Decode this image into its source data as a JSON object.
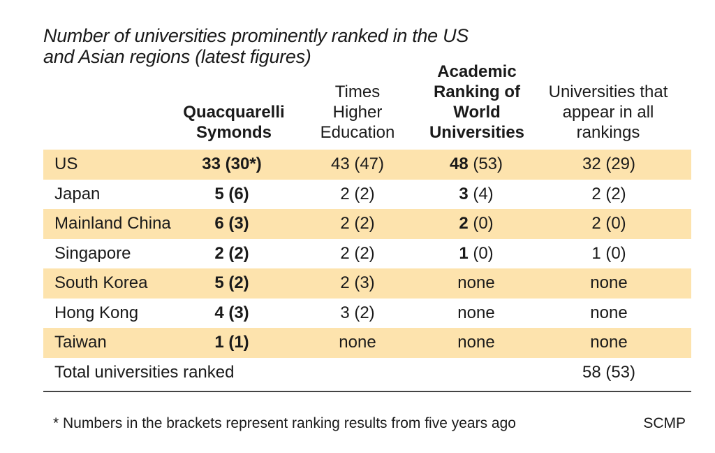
{
  "title": {
    "line1": "Number of universities prominently ranked in the US",
    "line2": "and Asian regions (latest figures)"
  },
  "headers": [
    {
      "lines": [
        "Quacquarelli",
        "Symonds"
      ],
      "bold": true
    },
    {
      "lines": [
        "Times",
        "Higher",
        "Education"
      ],
      "bold": false
    },
    {
      "lines": [
        "Academic",
        "Ranking of",
        "World",
        "Universities"
      ],
      "bold": true
    },
    {
      "lines": [
        "Universities that",
        "appear in all",
        "rankings"
      ],
      "bold": false
    }
  ],
  "chart_data": {
    "type": "table",
    "columns": [
      "Quacquarelli Symonds",
      "Times Higher Education",
      "Academic Ranking of World Universities",
      "Universities that appear in all rankings"
    ],
    "rows": [
      {
        "region": "US",
        "qs": "33 (30*)",
        "the_latest": "43",
        "the_prev": "(47)",
        "arwu_latest": "48",
        "arwu_prev": "(53)",
        "all": "32 (29)",
        "shaded": true
      },
      {
        "region": "Japan",
        "qs": "5 (6)",
        "the_latest": "2",
        "the_prev": "(2)",
        "arwu_latest": "3",
        "arwu_prev": "(4)",
        "all": "2 (2)",
        "shaded": false
      },
      {
        "region": "Mainland China",
        "qs": "6 (3)",
        "the_latest": "2",
        "the_prev": "(2)",
        "arwu_latest": "2",
        "arwu_prev": "(0)",
        "all": "2 (0)",
        "shaded": true
      },
      {
        "region": "Singapore",
        "qs": "2 (2)",
        "the_latest": "2",
        "the_prev": "(2)",
        "arwu_latest": "1",
        "arwu_prev": "(0)",
        "all": "1 (0)",
        "shaded": false
      },
      {
        "region": "South Korea",
        "qs": "5 (2)",
        "the_latest": "2",
        "the_prev": "(3)",
        "arwu_latest": "none",
        "arwu_prev": "",
        "all": "none",
        "shaded": true
      },
      {
        "region": "Hong Kong",
        "qs": "4 (3)",
        "the_latest": "3",
        "the_prev": "(2)",
        "arwu_latest": "none",
        "arwu_prev": "",
        "all": "none",
        "shaded": false
      },
      {
        "region": "Taiwan",
        "qs": "1 (1)",
        "the_latest": "none",
        "the_prev": "",
        "arwu_latest": "none",
        "arwu_prev": "",
        "all": "none",
        "shaded": true
      }
    ],
    "total": {
      "label": "Total universities ranked",
      "all": "58 (53)"
    }
  },
  "footnote": "* Numbers in the brackets represent ranking results from five years ago",
  "source": "SCMP",
  "colors": {
    "row_shade": "#fde3ad",
    "text": "#1a1a1a",
    "rule": "#444444"
  }
}
